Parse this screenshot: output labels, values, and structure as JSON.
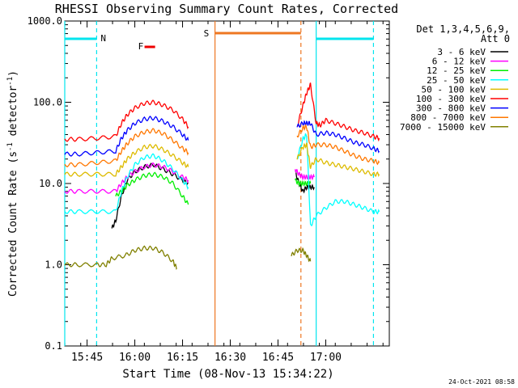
{
  "chart_data": {
    "type": "line",
    "title": "RHESSI Observing Summary Count Rates, Corrected",
    "xlabel": "Start Time (08-Nov-13 15:34:22)",
    "ylabel_main": "Corrected Count Rate (s",
    "ylabel_sup1": "-1",
    "ylabel_mid": " detector",
    "ylabel_sup2": "-1",
    "ylabel_end": ")",
    "y_scale": "log",
    "ylim": [
      0.1,
      1000
    ],
    "xlim_minutes": [
      15.633,
      17.333
    ],
    "y_ticks": [
      {
        "v": 0.1,
        "label": "0.1"
      },
      {
        "v": 1,
        "label": "1.0"
      },
      {
        "v": 10,
        "label": "10.0"
      },
      {
        "v": 100,
        "label": "100.0"
      },
      {
        "v": 1000,
        "label": "1000.0"
      }
    ],
    "x_ticks": [
      {
        "v": 15.75,
        "label": "15:45"
      },
      {
        "v": 16.0,
        "label": "16:00"
      },
      {
        "v": 16.25,
        "label": "16:15"
      },
      {
        "v": 16.5,
        "label": "16:30"
      },
      {
        "v": 16.75,
        "label": "16:45"
      },
      {
        "v": 17.0,
        "label": "17:00"
      }
    ],
    "legend_title1": "Det 1,3,4,5,6,9,",
    "legend_title2": "Att 0",
    "legend_placement": "right",
    "series": [
      {
        "name": "3 - 6 keV",
        "color": "#000000",
        "segments": [
          {
            "t": [
              15.88,
              15.9,
              15.93,
              15.96,
              16.0,
              16.05,
              16.1,
              16.15,
              16.2,
              16.25,
              16.28
            ],
            "y": [
              2.8,
              3.5,
              7,
              11,
              14,
              16,
              17,
              15,
              13,
              11,
              10
            ]
          },
          {
            "t": [
              16.84,
              16.86,
              16.88,
              16.9,
              16.92,
              16.94
            ],
            "y": [
              14,
              10,
              8,
              9,
              9,
              9
            ]
          }
        ]
      },
      {
        "name": "6 - 12 keV",
        "color": "#ff00ff",
        "segments": [
          {
            "t": [
              15.633,
              15.7,
              15.8,
              15.9,
              15.93,
              15.96,
              16.0,
              16.05,
              16.1,
              16.15,
              16.2,
              16.25,
              16.28
            ],
            "y": [
              8,
              8,
              8,
              8,
              10,
              12,
              14,
              16,
              17,
              16,
              14,
              12,
              11
            ]
          },
          {
            "t": [
              16.84,
              16.86,
              16.88,
              16.9,
              16.92,
              16.94
            ],
            "y": [
              15,
              13,
              12,
              12,
              12,
              12
            ]
          }
        ]
      },
      {
        "name": "12 - 25 keV",
        "color": "#00ee00",
        "segments": [
          {
            "t": [
              15.9,
              15.93,
              15.96,
              16.0,
              16.05,
              16.1,
              16.15,
              16.2,
              16.25,
              16.28
            ],
            "y": [
              7,
              8,
              9.5,
              11,
              12.5,
              13,
              12,
              10,
              7,
              5.5
            ]
          },
          {
            "t": [
              16.84,
              16.86,
              16.88,
              16.9,
              16.92
            ],
            "y": [
              11,
              10,
              10,
              10,
              10
            ]
          }
        ]
      },
      {
        "name": "25 - 50 keV",
        "color": "#00ffff",
        "segments": [
          {
            "t": [
              15.633,
              15.7,
              15.8,
              15.9,
              15.93,
              15.96,
              16.0,
              16.05,
              16.1,
              16.15,
              16.2,
              16.25,
              16.28
            ],
            "y": [
              4.5,
              4.5,
              4.5,
              4.5,
              8,
              12,
              17,
              21,
              22,
              19,
              15,
              11,
              9
            ]
          },
          {
            "t": [
              16.85,
              16.88,
              16.9,
              16.92,
              16.95,
              17.0,
              17.05,
              17.1,
              17.15,
              17.2,
              17.25,
              17.28
            ],
            "y": [
              20,
              35,
              40,
              3,
              4,
              5,
              6,
              6,
              5.5,
              5,
              4.5,
              4.5
            ]
          }
        ]
      },
      {
        "name": "50 - 100 keV",
        "color": "#ddbb00",
        "segments": [
          {
            "t": [
              15.633,
              15.7,
              15.8,
              15.9,
              15.93,
              15.96,
              16.0,
              16.05,
              16.1,
              16.15,
              16.2,
              16.25,
              16.28
            ],
            "y": [
              13,
              13,
              13,
              13,
              16,
              20,
              24,
              28,
              29,
              26,
              22,
              18,
              16
            ]
          },
          {
            "t": [
              16.85,
              16.88,
              16.9,
              16.92,
              16.95,
              17.0,
              17.05,
              17.1,
              17.15,
              17.2,
              17.25,
              17.28
            ],
            "y": [
              20,
              28,
              30,
              16,
              20,
              18,
              17,
              16,
              15,
              14,
              13,
              13
            ]
          }
        ]
      },
      {
        "name": "100 - 300 keV",
        "color": "#ff0000",
        "segments": [
          {
            "t": [
              15.633,
              15.7,
              15.8,
              15.9,
              15.93,
              15.96,
              16.0,
              16.05,
              16.1,
              16.15,
              16.2,
              16.25,
              16.28
            ],
            "y": [
              35,
              35,
              36,
              38,
              55,
              70,
              85,
              97,
              100,
              92,
              80,
              62,
              50
            ]
          },
          {
            "t": [
              16.85,
              16.88,
              16.9,
              16.92,
              16.95,
              16.97,
              17.0,
              17.05,
              17.1,
              17.15,
              17.2,
              17.25,
              17.28
            ],
            "y": [
              50,
              90,
              130,
              165,
              55,
              52,
              60,
              55,
              50,
              45,
              42,
              38,
              36
            ]
          }
        ]
      },
      {
        "name": "300 - 800 keV",
        "color": "#0000ff",
        "segments": [
          {
            "t": [
              15.633,
              15.7,
              15.8,
              15.9,
              15.93,
              15.96,
              16.0,
              16.05,
              16.1,
              16.15,
              16.2,
              16.25,
              16.28
            ],
            "y": [
              23,
              23,
              24,
              25,
              36,
              45,
              55,
              62,
              64,
              58,
              50,
              40,
              34
            ]
          },
          {
            "t": [
              16.85,
              16.88,
              16.9,
              16.92,
              16.95,
              17.0,
              17.05,
              17.1,
              17.15,
              17.2,
              17.25,
              17.28
            ],
            "y": [
              50,
              55,
              55,
              55,
              40,
              42,
              40,
              36,
              32,
              30,
              27,
              25
            ]
          }
        ]
      },
      {
        "name": "800 - 7000 keV",
        "color": "#ff7700",
        "segments": [
          {
            "t": [
              15.633,
              15.7,
              15.8,
              15.9,
              15.93,
              15.96,
              16.0,
              16.05,
              16.1,
              16.15,
              16.2,
              16.25,
              16.28
            ],
            "y": [
              17,
              17,
              18,
              19,
              25,
              31,
              38,
              43,
              45,
              41,
              34,
              27,
              24
            ]
          },
          {
            "t": [
              16.85,
              16.88,
              16.9,
              16.92,
              16.95,
              17.0,
              17.05,
              17.1,
              17.15,
              17.2,
              17.25,
              17.28
            ],
            "y": [
              38,
              48,
              50,
              28,
              30,
              30,
              28,
              25,
              22,
              20,
              19,
              18
            ]
          }
        ]
      },
      {
        "name": "7000 - 15000 keV",
        "color": "#808000",
        "segments": [
          {
            "t": [
              15.633,
              15.7,
              15.8,
              15.85,
              15.88,
              15.95,
              16.0,
              16.05,
              16.1,
              16.15,
              16.2,
              16.22
            ],
            "y": [
              1,
              1,
              1,
              1,
              1.2,
              1.3,
              1.5,
              1.6,
              1.6,
              1.4,
              1.1,
              0.9
            ]
          },
          {
            "t": [
              16.82,
              16.85,
              16.88,
              16.9,
              16.92
            ],
            "y": [
              1.3,
              1.5,
              1.5,
              1.3,
              1.1
            ]
          }
        ]
      }
    ],
    "markers": [
      {
        "kind": "night-bar",
        "label": "N",
        "color": "#00e5ee",
        "t_start": 15.633,
        "t_end": 15.8
      },
      {
        "kind": "night-bar",
        "label": "",
        "color": "#00e5ee",
        "t_start": 16.95,
        "t_end": 17.25
      },
      {
        "kind": "saa-bar",
        "label": "S",
        "color": "#ee7722",
        "t_start": 16.42,
        "t_end": 16.87
      },
      {
        "kind": "flare",
        "label": "F",
        "color": "#ee0000",
        "t_start": 16.0,
        "t_end": 16.03
      }
    ],
    "vlines": [
      {
        "t": 15.633,
        "color": "#00e5ee",
        "dashed": false
      },
      {
        "t": 15.8,
        "color": "#00e5ee",
        "dashed": true
      },
      {
        "t": 16.42,
        "color": "#ee7722",
        "dashed": false
      },
      {
        "t": 16.87,
        "color": "#ee7722",
        "dashed": true
      },
      {
        "t": 16.95,
        "color": "#00e5ee",
        "dashed": false
      },
      {
        "t": 17.25,
        "color": "#00e5ee",
        "dashed": true
      }
    ]
  },
  "footer": {
    "timestamp": "24-Oct-2021 08:58"
  }
}
